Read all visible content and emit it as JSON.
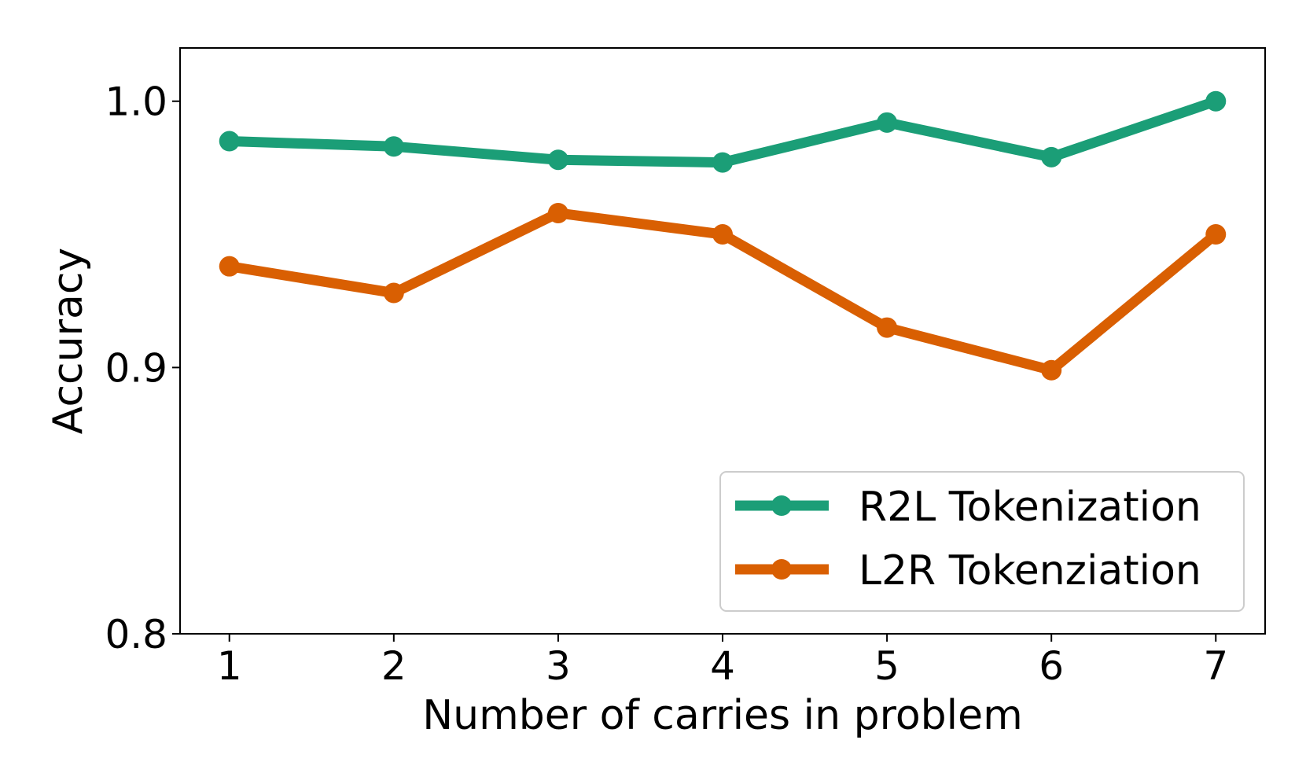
{
  "chart_data": {
    "type": "line",
    "title": "",
    "xlabel": "Number of carries in problem",
    "ylabel": "Accuracy",
    "x": [
      1,
      2,
      3,
      4,
      5,
      6,
      7
    ],
    "xticks": [
      "1",
      "2",
      "3",
      "4",
      "5",
      "6",
      "7"
    ],
    "yticks": [
      "0.8",
      "0.9",
      "1.0"
    ],
    "xlim": [
      0.7,
      7.3
    ],
    "ylim": [
      0.8,
      1.02
    ],
    "grid": false,
    "legend_position": "lower-right",
    "series": [
      {
        "name": "R2L Tokenization",
        "color": "#1b9e77",
        "values": [
          0.985,
          0.983,
          0.978,
          0.977,
          0.992,
          0.979,
          1.0
        ]
      },
      {
        "name": "L2R Tokenziation",
        "color": "#d95f02",
        "values": [
          0.938,
          0.928,
          0.958,
          0.95,
          0.915,
          0.899,
          0.95
        ]
      }
    ]
  }
}
